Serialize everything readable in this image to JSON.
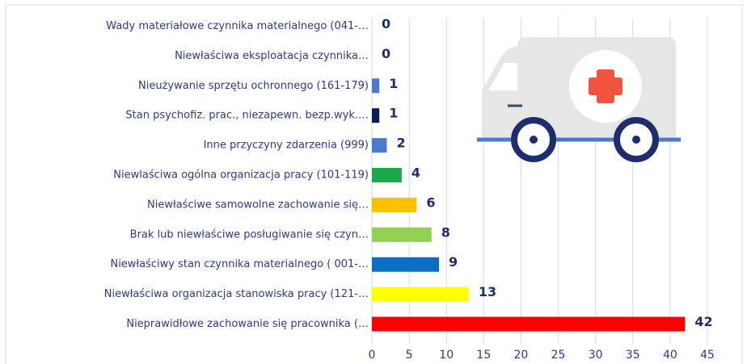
{
  "chart_data": {
    "type": "bar",
    "orientation": "horizontal",
    "categories": [
      "Wady materiałowe czynnika materialnego (041-…",
      "Niewłaściwa eksploatacja czynnika…",
      "Nieużywanie sprzętu ochronnego (161-179)",
      "Stan psychofiz. prac., niezapewn. bezp.wyk.…",
      "Inne przyczyny zdarzenia (999)",
      "Niewlaściwa ogólna organizacja pracy (101-119)",
      "Niewłaściwe samowolne zachowanie się…",
      "Brak lub niewłaściwe posługiwanie się czyn…",
      "Niewłaściwy stan czynnika materialnego ( 001-…",
      "Niewłaściwa organizacja stanowiska pracy (121-…",
      "Nieprawidłowe zachowanie się pracownika (…"
    ],
    "values": [
      0,
      0,
      1,
      1,
      2,
      4,
      6,
      8,
      9,
      13,
      42
    ],
    "colors": [
      "#4a7bd0",
      "#4a7bd0",
      "#4a7bd0",
      "#0d1b5a",
      "#4a7bd0",
      "#1ea84e",
      "#ffc000",
      "#92d050",
      "#0a6fc2",
      "#ffff00",
      "#ff0000"
    ],
    "xlim": [
      0,
      45
    ],
    "xticks": [
      0,
      5,
      10,
      15,
      20,
      25,
      30,
      35,
      40,
      45
    ],
    "grid": true
  }
}
